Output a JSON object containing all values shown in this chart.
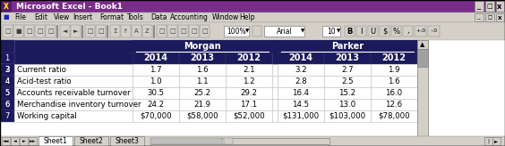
{
  "title_text": "Microsoft Excel - Book1",
  "title_bar_color": "#7B2C8B",
  "title_text_color": "#FFFFFF",
  "menu_bar_color": "#D4D0C8",
  "menu_items": "File  Edit  View  Insert  Format  Tools  Data  Accounting  Window  Help",
  "toolbar_color": "#D4D0C8",
  "sheet_bg": "#FFFFFF",
  "grid_color": "#C0C0C0",
  "header_dark_bg": "#1A1A5C",
  "header_text_color": "#FFFFFF",
  "row_num_bg": "#D4D0C8",
  "row_num_border": "#808080",
  "col_header_bg": "#D4D0C8",
  "row_labels": [
    "Current ratio",
    "Acid-test ratio",
    "Accounts receivable turnover",
    "Merchandise inventory turnover",
    "Working capital"
  ],
  "years": [
    "2014",
    "2013",
    "2012",
    "2014",
    "2013",
    "2012"
  ],
  "group_labels": [
    "Morgan",
    "Parker"
  ],
  "data_rows": [
    [
      "1.7",
      "1.6",
      "2.1",
      "3.2",
      "2.7",
      "1.9"
    ],
    [
      "1.0",
      "1.1",
      "1.2",
      "2.8",
      "2.5",
      "1.6"
    ],
    [
      "30.5",
      "25.2",
      "29.2",
      "16.4",
      "15.2",
      "16.0"
    ],
    [
      "24.2",
      "21.9",
      "17.1",
      "14.5",
      "13.0",
      "12.6"
    ],
    [
      "$70,000",
      "$58,000",
      "$52,000",
      "$131,000",
      "$103,000",
      "$78,000"
    ]
  ],
  "fig_width": 5.64,
  "fig_height": 1.64,
  "dpi": 100,
  "outer_bg": "#848284",
  "scrollbar_color": "#D4D0C8",
  "tab_text": "Sheet1",
  "tab2_text": "Sheet2",
  "tab3_text": "Sheet3"
}
